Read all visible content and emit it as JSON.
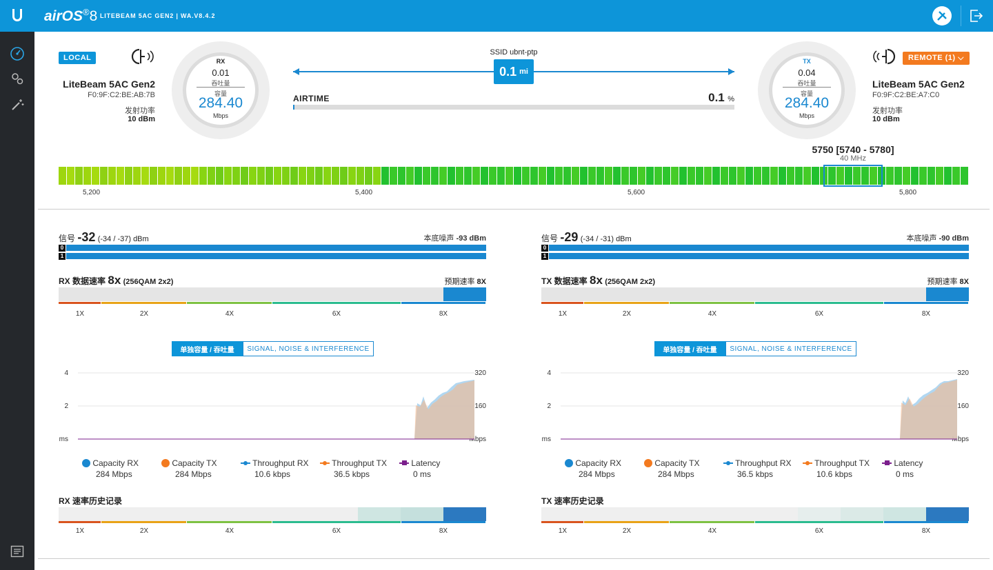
{
  "header": {
    "brand": "airOS",
    "brand_version": "8",
    "device_info": "LITEBEAM 5AC GEN2 | WA.V8.4.2"
  },
  "sidebar": {
    "items": [
      {
        "name": "dashboard-icon"
      },
      {
        "name": "settings-icon"
      },
      {
        "name": "wizard-icon"
      },
      {
        "name": "log-icon"
      }
    ]
  },
  "local": {
    "badge": "LOCAL",
    "name": "LiteBeam 5AC Gen2",
    "mac": "F0:9F:C2:BE:AB:7B",
    "power_label": "发射功率",
    "power_value": "10 dBm"
  },
  "remote": {
    "badge": "REMOTE (1)",
    "name": "LiteBeam 5AC Gen2",
    "mac": "F0:9F:C2:BE:A7:C0",
    "power_label": "发射功率",
    "power_value": "10 dBm"
  },
  "rx_gauge": {
    "label": "RX",
    "throughput": "0.01",
    "throughput_label": "吞吐量",
    "capacity_label": "容量",
    "capacity": "284.40",
    "unit": "Mbps"
  },
  "tx_gauge": {
    "label": "TX",
    "throughput": "0.04",
    "throughput_label": "吞吐量",
    "capacity_label": "容量",
    "capacity": "284.40",
    "unit": "Mbps"
  },
  "link": {
    "ssid": "SSID ubnt-ptp",
    "distance_value": "0.1",
    "distance_unit": "mi",
    "airtime_label": "AIRTIME",
    "airtime_value": "0.1",
    "airtime_unit": "%",
    "airtime_fraction": 0.001
  },
  "spectrum": {
    "channel": "5750 [5740 - 5780]",
    "width": "40 MHz",
    "ticks": [
      "5,200",
      "5,400",
      "5,600",
      "5,800"
    ]
  },
  "panels": [
    {
      "signal_label": "信号",
      "signal_value": "-32",
      "signal_chains": "(-34 / -37) dBm",
      "noise_label": "本底噪声",
      "noise_value": "-93 dBm",
      "chain0": "0",
      "chain1": "1",
      "rate_prefix": "RX 数据速率",
      "rate_value": "8x",
      "rate_detail": "(256QAM 2x2)",
      "expected_label": "预期速率",
      "expected_value": "8X",
      "rate_ticks": [
        "1X",
        "2X",
        "4X",
        "6X",
        "8X"
      ],
      "tab_active": "单独容量 / 吞吐量",
      "tab_inactive": "SIGNAL, NOISE & INTERFERENCE",
      "chart": {
        "left_ticks": [
          "4",
          "2",
          "ms"
        ],
        "right_ticks": [
          "320",
          "160",
          "Mbps"
        ]
      },
      "legend": [
        {
          "name": "Capacity RX",
          "value": "284 Mbps",
          "color": "#1a88d0",
          "kind": "dot"
        },
        {
          "name": "Capacity TX",
          "value": "284 Mbps",
          "color": "#f37a1f",
          "kind": "dot"
        },
        {
          "name": "Throughput RX",
          "value": "10.6 kbps",
          "color": "#1a88d0",
          "kind": "line"
        },
        {
          "name": "Throughput TX",
          "value": "36.5 kbps",
          "color": "#f37a1f",
          "kind": "line"
        },
        {
          "name": "Latency",
          "value": "0 ms",
          "color": "#7b1f8c",
          "kind": "square"
        }
      ],
      "history_label": "RX 速率历史记录",
      "history_ticks": [
        "1X",
        "2X",
        "4X",
        "6X",
        "8X"
      ]
    },
    {
      "signal_label": "信号",
      "signal_value": "-29",
      "signal_chains": "(-34 / -31) dBm",
      "noise_label": "本底噪声",
      "noise_value": "-90 dBm",
      "chain0": "0",
      "chain1": "1",
      "rate_prefix": "TX 数据速率",
      "rate_value": "8x",
      "rate_detail": "(256QAM 2x2)",
      "expected_label": "预期速率",
      "expected_value": "8X",
      "rate_ticks": [
        "1X",
        "2X",
        "4X",
        "6X",
        "8X"
      ],
      "tab_active": "单独容量 / 吞吐量",
      "tab_inactive": "SIGNAL, NOISE & INTERFERENCE",
      "chart": {
        "left_ticks": [
          "4",
          "2",
          "ms"
        ],
        "right_ticks": [
          "320",
          "160",
          "Mbps"
        ]
      },
      "legend": [
        {
          "name": "Capacity RX",
          "value": "284 Mbps",
          "color": "#1a88d0",
          "kind": "dot"
        },
        {
          "name": "Capacity TX",
          "value": "284 Mbps",
          "color": "#f37a1f",
          "kind": "dot"
        },
        {
          "name": "Throughput RX",
          "value": "36.5 kbps",
          "color": "#1a88d0",
          "kind": "line"
        },
        {
          "name": "Throughput TX",
          "value": "10.6 kbps",
          "color": "#f37a1f",
          "kind": "line"
        },
        {
          "name": "Latency",
          "value": "0 ms",
          "color": "#7b1f8c",
          "kind": "square"
        }
      ],
      "history_label": "TX 速率历史记录",
      "history_ticks": [
        "1X",
        "2X",
        "4X",
        "6X",
        "8X"
      ]
    }
  ]
}
